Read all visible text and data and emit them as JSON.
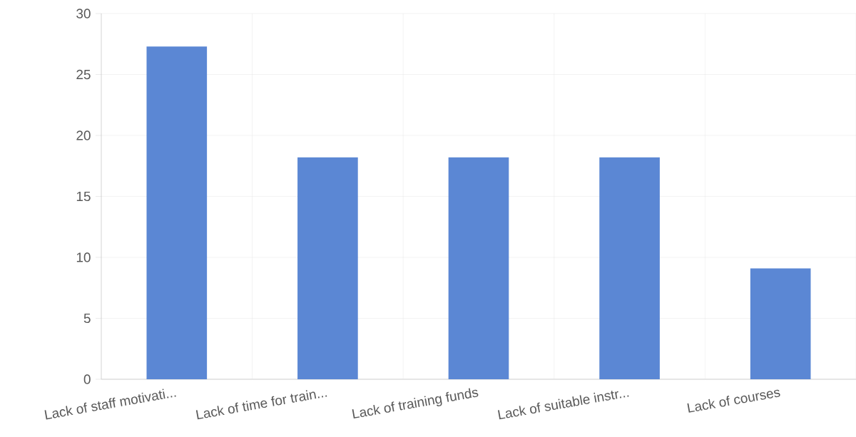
{
  "chart_data": {
    "type": "bar",
    "categories": [
      "Lack of staff motivati...",
      "Lack of time for train...",
      "Lack of training funds",
      "Lack of suitable instr...",
      "Lack of courses"
    ],
    "values": [
      27.3,
      18.2,
      18.2,
      18.2,
      9.1
    ],
    "color": "#5b87d4",
    "ylim": [
      0,
      30
    ],
    "yticks": [
      0,
      5,
      10,
      15,
      20,
      25,
      30
    ],
    "grid": true
  }
}
